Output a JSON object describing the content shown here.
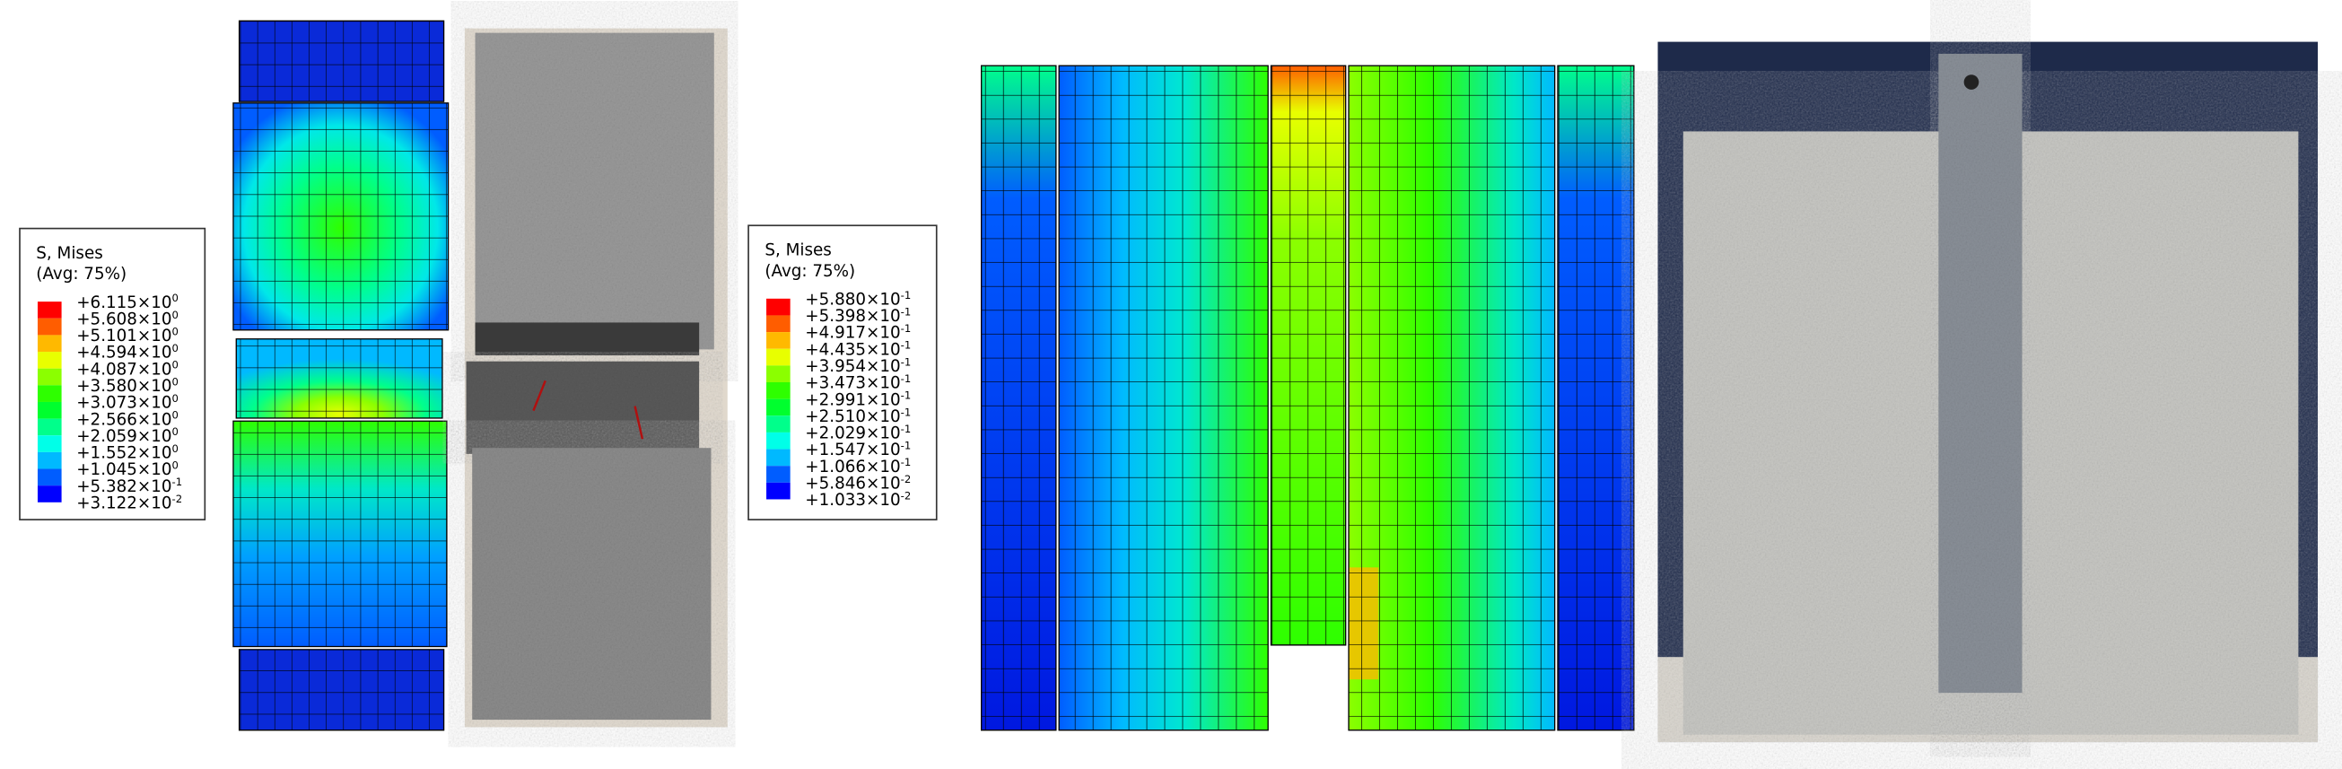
{
  "legends": [
    {
      "title": "S, Mises",
      "subtitle": "(Avg: 75%)",
      "labels": [
        {
          "base": "+6.115×10",
          "exp": "0"
        },
        {
          "base": "+5.608×10",
          "exp": "0"
        },
        {
          "base": "+5.101×10",
          "exp": "0"
        },
        {
          "base": "+4.594×10",
          "exp": "0"
        },
        {
          "base": "+4.087×10",
          "exp": "0"
        },
        {
          "base": "+3.580×10",
          "exp": "0"
        },
        {
          "base": "+3.073×10",
          "exp": "0"
        },
        {
          "base": "+2.566×10",
          "exp": "0"
        },
        {
          "base": "+2.059×10",
          "exp": "0"
        },
        {
          "base": "+1.552×10",
          "exp": "0"
        },
        {
          "base": "+1.045×10",
          "exp": "0"
        },
        {
          "base": "+5.382×10",
          "exp": "-1"
        },
        {
          "base": "+3.122×10",
          "exp": "-2"
        }
      ]
    },
    {
      "title": "S, Mises",
      "subtitle": "(Avg: 75%)",
      "labels": [
        {
          "base": "+5.880×10",
          "exp": "-1"
        },
        {
          "base": "+5.398×10",
          "exp": "-1"
        },
        {
          "base": "+4.917×10",
          "exp": "-1"
        },
        {
          "base": "+4.435×10",
          "exp": "-1"
        },
        {
          "base": "+3.954×10",
          "exp": "-1"
        },
        {
          "base": "+3.473×10",
          "exp": "-1"
        },
        {
          "base": "+2.991×10",
          "exp": "-1"
        },
        {
          "base": "+2.510×10",
          "exp": "-1"
        },
        {
          "base": "+2.029×10",
          "exp": "-1"
        },
        {
          "base": "+1.547×10",
          "exp": "-1"
        },
        {
          "base": "+1.066×10",
          "exp": "-1"
        },
        {
          "base": "+5.846×10",
          "exp": "-2"
        },
        {
          "base": "+1.033×10",
          "exp": "-2"
        }
      ]
    }
  ]
}
